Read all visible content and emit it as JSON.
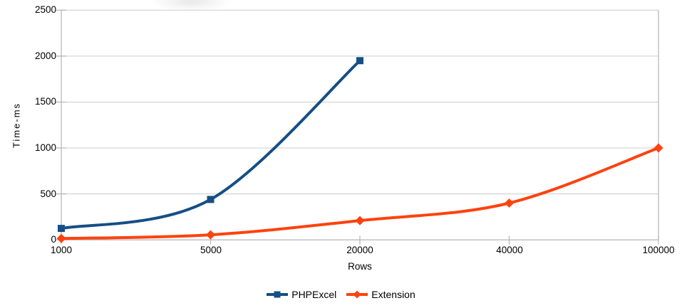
{
  "chart_data": {
    "type": "line",
    "title": "",
    "xlabel": "Rows",
    "ylabel": "Time-ms",
    "categories": [
      "1000",
      "5000",
      "20000",
      "40000",
      "100000"
    ],
    "y_ticks": [
      0,
      500,
      1000,
      1500,
      2000,
      2500
    ],
    "ylim": [
      0,
      2500
    ],
    "grid": "horizontal",
    "legend_position": "bottom-center",
    "smooth_lines": true,
    "series": [
      {
        "name": "PHPExcel",
        "marker": "square",
        "color": "#164E85",
        "values": [
          125,
          440,
          1950
        ]
      },
      {
        "name": "Extension",
        "marker": "diamond",
        "color": "#FF420E",
        "values": [
          15,
          55,
          210,
          400,
          1000
        ]
      }
    ],
    "colors": {
      "grid": "#CCCCCC",
      "axis": "#B3B3B3",
      "text": "#000000",
      "background": "#FFFFFF"
    }
  }
}
